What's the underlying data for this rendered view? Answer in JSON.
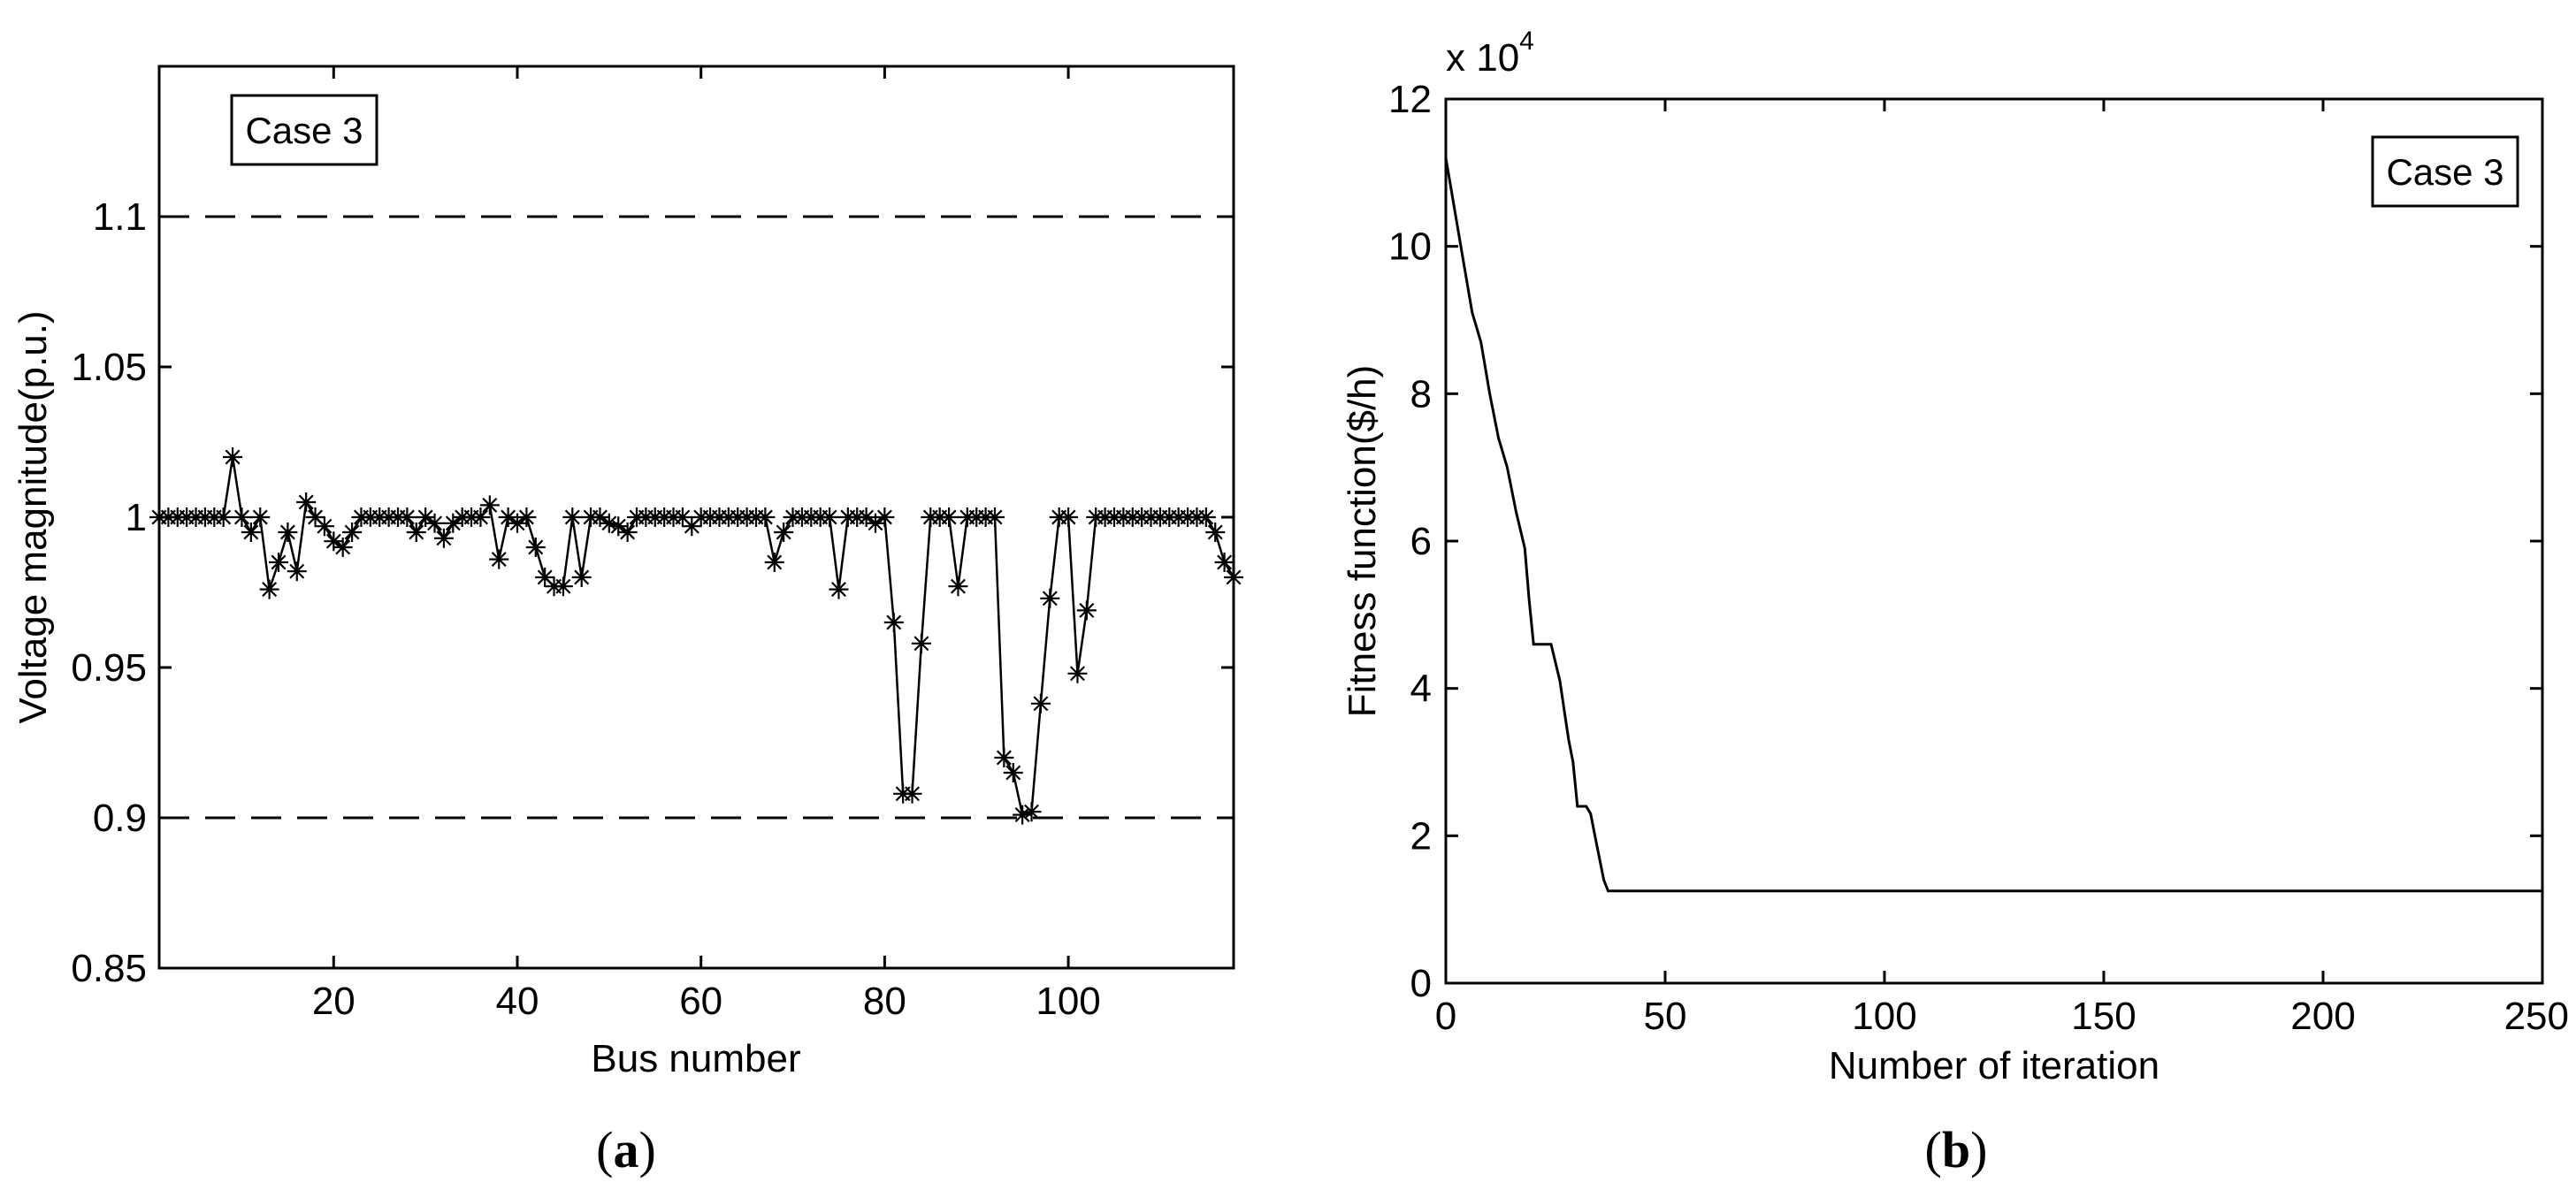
{
  "chart_data": [
    {
      "type": "line",
      "panel": "(a)",
      "caption_letter": "a",
      "xlabel": "Bus number",
      "ylabel": "Voltage magnitude(p.u.)",
      "xlim": [
        1,
        118
      ],
      "ylim": [
        0.85,
        1.15
      ],
      "xticks": [
        20,
        40,
        60,
        80,
        100
      ],
      "yticks": [
        0.85,
        0.9,
        0.95,
        1,
        1.05,
        1.1
      ],
      "ytick_labels": [
        "0.85",
        "0.9",
        "0.95",
        "1",
        "1.05",
        "1.1"
      ],
      "annotation": "Case 3",
      "marker": "star",
      "limit_lines": [
        0.9,
        1.1
      ],
      "x": [
        1,
        2,
        3,
        4,
        5,
        6,
        7,
        8,
        9,
        10,
        11,
        12,
        13,
        14,
        15,
        16,
        17,
        18,
        19,
        20,
        21,
        22,
        23,
        24,
        25,
        26,
        27,
        28,
        29,
        30,
        31,
        32,
        33,
        34,
        35,
        36,
        37,
        38,
        39,
        40,
        41,
        42,
        43,
        44,
        45,
        46,
        47,
        48,
        49,
        50,
        51,
        52,
        53,
        54,
        55,
        56,
        57,
        58,
        59,
        60,
        61,
        62,
        63,
        64,
        65,
        66,
        67,
        68,
        69,
        70,
        71,
        72,
        73,
        74,
        75,
        76,
        77,
        78,
        79,
        80,
        81,
        82,
        83,
        84,
        85,
        86,
        87,
        88,
        89,
        90,
        91,
        92,
        93,
        94,
        95,
        96,
        97,
        98,
        99,
        100,
        101,
        102,
        103,
        104,
        105,
        106,
        107,
        108,
        109,
        110,
        111,
        112,
        113,
        114,
        115,
        116,
        117,
        118
      ],
      "y": [
        1.0,
        1.0,
        1.0,
        1.0,
        1.0,
        1.0,
        1.0,
        1.0,
        1.02,
        1.0,
        0.995,
        1.0,
        0.976,
        0.985,
        0.995,
        0.982,
        1.005,
        1.0,
        0.997,
        0.992,
        0.99,
        0.995,
        1.0,
        1.0,
        1.0,
        1.0,
        1.0,
        1.0,
        0.995,
        1.0,
        0.998,
        0.993,
        0.998,
        1.0,
        1.0,
        1.0,
        1.004,
        0.986,
        1.0,
        0.998,
        1.0,
        0.99,
        0.98,
        0.977,
        0.977,
        1.0,
        0.98,
        1.0,
        1.0,
        0.998,
        0.997,
        0.995,
        1.0,
        1.0,
        1.0,
        1.0,
        1.0,
        1.0,
        0.997,
        1.0,
        1.0,
        1.0,
        1.0,
        1.0,
        1.0,
        1.0,
        1.0,
        0.985,
        0.995,
        1.0,
        1.0,
        1.0,
        1.0,
        1.0,
        0.976,
        1.0,
        1.0,
        1.0,
        0.998,
        1.0,
        0.965,
        0.908,
        0.908,
        0.958,
        1.0,
        1.0,
        1.0,
        0.977,
        1.0,
        1.0,
        1.0,
        1.0,
        0.92,
        0.915,
        0.901,
        0.902,
        0.938,
        0.973,
        1.0,
        1.0,
        0.948,
        0.969,
        1.0,
        1.0,
        1.0,
        1.0,
        1.0,
        1.0,
        1.0,
        1.0,
        1.0,
        1.0,
        1.0,
        1.0,
        1.0,
        0.995,
        0.985,
        0.98
      ]
    },
    {
      "type": "line",
      "panel": "(b)",
      "caption_letter": "b",
      "xlabel": "Number of iteration",
      "ylabel": "Fitness function($/h)",
      "xlim": [
        0,
        250
      ],
      "ylim": [
        0,
        12
      ],
      "xticks": [
        0,
        50,
        100,
        150,
        200,
        250
      ],
      "yticks": [
        0,
        2,
        4,
        6,
        8,
        10,
        12
      ],
      "y_multiplier": "x 10",
      "y_multiplier_exponent": "4",
      "annotation": "Case 3",
      "x": [
        0,
        2,
        4,
        6,
        8,
        10,
        12,
        14,
        16,
        18,
        19,
        20,
        21,
        22,
        24,
        26,
        27,
        28,
        29,
        30,
        31,
        32,
        33,
        34,
        35,
        36,
        37,
        38,
        40,
        60,
        100,
        150,
        200,
        250
      ],
      "y": [
        11.2,
        10.5,
        9.8,
        9.1,
        8.7,
        8.0,
        7.4,
        7.0,
        6.4,
        5.9,
        5.2,
        4.6,
        4.6,
        4.6,
        4.6,
        4.1,
        3.7,
        3.3,
        3.0,
        2.4,
        2.4,
        2.4,
        2.3,
        2.0,
        1.7,
        1.4,
        1.25,
        1.25,
        1.25,
        1.25,
        1.25,
        1.25,
        1.25,
        1.25
      ]
    }
  ]
}
